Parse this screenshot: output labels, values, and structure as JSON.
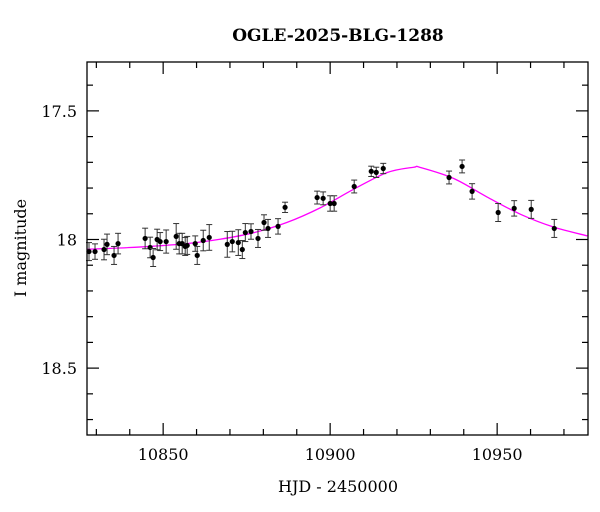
{
  "chart_data": {
    "type": "scatter",
    "title": "OGLE-2025-BLG-1288",
    "xlabel": "HJD - 2450000",
    "ylabel": "I magnitude",
    "xlim": [
      10827.2,
      10977.2
    ],
    "ylim": [
      18.76,
      17.31
    ],
    "y_inverted": true,
    "x_ticks": [
      10850,
      10900,
      10950
    ],
    "x_tick_labels": [
      "10850",
      "10900",
      "10950"
    ],
    "y_ticks": [
      17.5,
      18,
      18.5
    ],
    "y_tick_labels": [
      "17.5",
      "18",
      "18.5"
    ],
    "grid": false,
    "colors": {
      "points": "#000000",
      "model": "#ff00ff"
    },
    "points": {
      "x": [
        10827.8,
        10829.6,
        10832.3,
        10833.2,
        10835.3,
        10836.5,
        10844.6,
        10846.1,
        10847.0,
        10848.2,
        10849.1,
        10850.9,
        10853.9,
        10854.8,
        10855.7,
        10856.6,
        10857.2,
        10859.6,
        10860.2,
        10862.0,
        10863.8,
        10869.2,
        10870.7,
        10872.5,
        10873.7,
        10874.6,
        10876.3,
        10878.4,
        10880.2,
        10881.4,
        10884.4,
        10886.5,
        10896.1,
        10897.9,
        10900.0,
        10901.2,
        10907.2,
        10912.3,
        10913.8,
        10915.9,
        10935.6,
        10939.5,
        10942.5,
        10950.3,
        10955.1,
        10960.2,
        10967.1
      ],
      "y": [
        18.047,
        18.047,
        18.039,
        18.019,
        18.062,
        18.016,
        17.996,
        18.031,
        18.07,
        18.0,
        18.008,
        18.008,
        17.988,
        18.016,
        18.016,
        18.027,
        18.023,
        18.016,
        18.062,
        18.004,
        17.992,
        18.019,
        18.008,
        18.012,
        18.039,
        17.973,
        17.969,
        17.996,
        17.934,
        17.957,
        17.949,
        17.875,
        17.837,
        17.84,
        17.86,
        17.86,
        17.794,
        17.735,
        17.739,
        17.724,
        17.759,
        17.716,
        17.813,
        17.895,
        17.879,
        17.883,
        17.957
      ],
      "yerr": [
        0.035,
        0.03,
        0.04,
        0.04,
        0.035,
        0.04,
        0.04,
        0.04,
        0.035,
        0.04,
        0.035,
        0.045,
        0.05,
        0.04,
        0.04,
        0.035,
        0.035,
        0.03,
        0.035,
        0.04,
        0.05,
        0.05,
        0.04,
        0.05,
        0.035,
        0.035,
        0.03,
        0.035,
        0.03,
        0.035,
        0.03,
        0.02,
        0.025,
        0.025,
        0.03,
        0.03,
        0.025,
        0.02,
        0.02,
        0.02,
        0.025,
        0.025,
        0.03,
        0.035,
        0.03,
        0.035,
        0.035
      ]
    },
    "model": {
      "x": [
        10827,
        10837,
        10847,
        10857,
        10867,
        10877,
        10887,
        10897,
        10907,
        10917,
        10925,
        10927,
        10937,
        10947,
        10957,
        10967,
        10977
      ],
      "y": [
        18.038,
        18.033,
        18.026,
        18.016,
        17.999,
        17.974,
        17.934,
        17.877,
        17.805,
        17.74,
        17.719,
        17.72,
        17.763,
        17.835,
        17.902,
        17.952,
        17.986
      ]
    }
  }
}
